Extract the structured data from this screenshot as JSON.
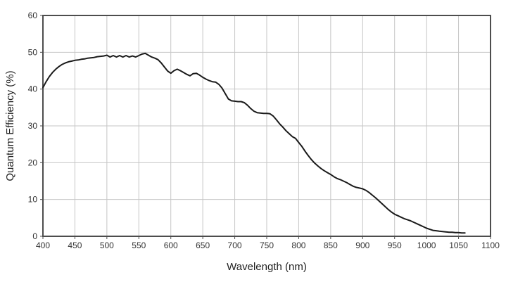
{
  "page": {
    "background": "#ffffff"
  },
  "chart_data": {
    "type": "line",
    "title": "",
    "xlabel": "Wavelength (nm)",
    "ylabel": "Quantum Efficiency (%)",
    "xlim": [
      400,
      1100
    ],
    "ylim": [
      0,
      60
    ],
    "x_ticks": [
      400,
      450,
      500,
      550,
      600,
      650,
      700,
      750,
      800,
      850,
      900,
      950,
      1000,
      1050,
      1100
    ],
    "y_ticks": [
      0,
      10,
      20,
      30,
      40,
      50,
      60
    ],
    "grid": true,
    "legend": "none",
    "colors": {
      "line": "#1a1a1a",
      "grid": "#c6c6c6",
      "axis_box": "#4d4d4d",
      "tick_text": "#333333",
      "label_text": "#222222",
      "background": "#ffffff"
    },
    "series": [
      {
        "name": "Quantum Efficiency",
        "points": [
          [
            400,
            40.4
          ],
          [
            405,
            42.0
          ],
          [
            410,
            43.4
          ],
          [
            415,
            44.5
          ],
          [
            420,
            45.4
          ],
          [
            425,
            46.1
          ],
          [
            430,
            46.7
          ],
          [
            435,
            47.1
          ],
          [
            440,
            47.4
          ],
          [
            445,
            47.6
          ],
          [
            450,
            47.8
          ],
          [
            455,
            47.9
          ],
          [
            460,
            48.1
          ],
          [
            465,
            48.2
          ],
          [
            470,
            48.4
          ],
          [
            475,
            48.5
          ],
          [
            480,
            48.6
          ],
          [
            485,
            48.8
          ],
          [
            490,
            48.9
          ],
          [
            495,
            49.0
          ],
          [
            500,
            49.2
          ],
          [
            505,
            48.7
          ],
          [
            510,
            49.1
          ],
          [
            515,
            48.7
          ],
          [
            520,
            49.1
          ],
          [
            525,
            48.7
          ],
          [
            530,
            49.1
          ],
          [
            535,
            48.7
          ],
          [
            540,
            49.0
          ],
          [
            545,
            48.7
          ],
          [
            550,
            49.1
          ],
          [
            555,
            49.5
          ],
          [
            560,
            49.7
          ],
          [
            565,
            49.2
          ],
          [
            570,
            48.7
          ],
          [
            575,
            48.4
          ],
          [
            580,
            48.0
          ],
          [
            585,
            47.1
          ],
          [
            590,
            46.0
          ],
          [
            595,
            44.9
          ],
          [
            600,
            44.3
          ],
          [
            605,
            45.0
          ],
          [
            610,
            45.4
          ],
          [
            615,
            45.0
          ],
          [
            620,
            44.5
          ],
          [
            625,
            44.0
          ],
          [
            630,
            43.6
          ],
          [
            635,
            44.2
          ],
          [
            640,
            44.3
          ],
          [
            645,
            43.8
          ],
          [
            650,
            43.2
          ],
          [
            655,
            42.7
          ],
          [
            660,
            42.3
          ],
          [
            665,
            42.0
          ],
          [
            670,
            41.9
          ],
          [
            675,
            41.3
          ],
          [
            680,
            40.3
          ],
          [
            685,
            38.8
          ],
          [
            690,
            37.3
          ],
          [
            695,
            36.8
          ],
          [
            700,
            36.7
          ],
          [
            705,
            36.6
          ],
          [
            710,
            36.6
          ],
          [
            715,
            36.3
          ],
          [
            720,
            35.6
          ],
          [
            725,
            34.7
          ],
          [
            730,
            34.0
          ],
          [
            735,
            33.6
          ],
          [
            740,
            33.5
          ],
          [
            745,
            33.4
          ],
          [
            750,
            33.4
          ],
          [
            755,
            33.3
          ],
          [
            760,
            32.7
          ],
          [
            765,
            31.7
          ],
          [
            770,
            30.6
          ],
          [
            775,
            29.7
          ],
          [
            780,
            28.7
          ],
          [
            785,
            27.9
          ],
          [
            790,
            27.1
          ],
          [
            795,
            26.6
          ],
          [
            800,
            25.5
          ],
          [
            805,
            24.4
          ],
          [
            810,
            23.1
          ],
          [
            815,
            21.9
          ],
          [
            820,
            20.8
          ],
          [
            825,
            19.9
          ],
          [
            830,
            19.1
          ],
          [
            835,
            18.4
          ],
          [
            840,
            17.8
          ],
          [
            845,
            17.3
          ],
          [
            850,
            16.8
          ],
          [
            855,
            16.2
          ],
          [
            860,
            15.7
          ],
          [
            865,
            15.4
          ],
          [
            870,
            15.0
          ],
          [
            875,
            14.6
          ],
          [
            880,
            14.1
          ],
          [
            885,
            13.6
          ],
          [
            890,
            13.3
          ],
          [
            895,
            13.1
          ],
          [
            900,
            12.9
          ],
          [
            905,
            12.5
          ],
          [
            910,
            11.9
          ],
          [
            915,
            11.2
          ],
          [
            920,
            10.5
          ],
          [
            925,
            9.7
          ],
          [
            930,
            8.9
          ],
          [
            935,
            8.1
          ],
          [
            940,
            7.3
          ],
          [
            945,
            6.6
          ],
          [
            950,
            6.0
          ],
          [
            955,
            5.6
          ],
          [
            960,
            5.2
          ],
          [
            965,
            4.8
          ],
          [
            970,
            4.5
          ],
          [
            975,
            4.2
          ],
          [
            980,
            3.8
          ],
          [
            985,
            3.4
          ],
          [
            990,
            3.0
          ],
          [
            995,
            2.6
          ],
          [
            1000,
            2.2
          ],
          [
            1005,
            1.9
          ],
          [
            1010,
            1.6
          ],
          [
            1015,
            1.5
          ],
          [
            1020,
            1.4
          ],
          [
            1025,
            1.3
          ],
          [
            1030,
            1.2
          ],
          [
            1035,
            1.1
          ],
          [
            1040,
            1.1
          ],
          [
            1045,
            1.0
          ],
          [
            1050,
            1.0
          ],
          [
            1055,
            0.9
          ],
          [
            1060,
            0.9
          ]
        ]
      }
    ]
  }
}
